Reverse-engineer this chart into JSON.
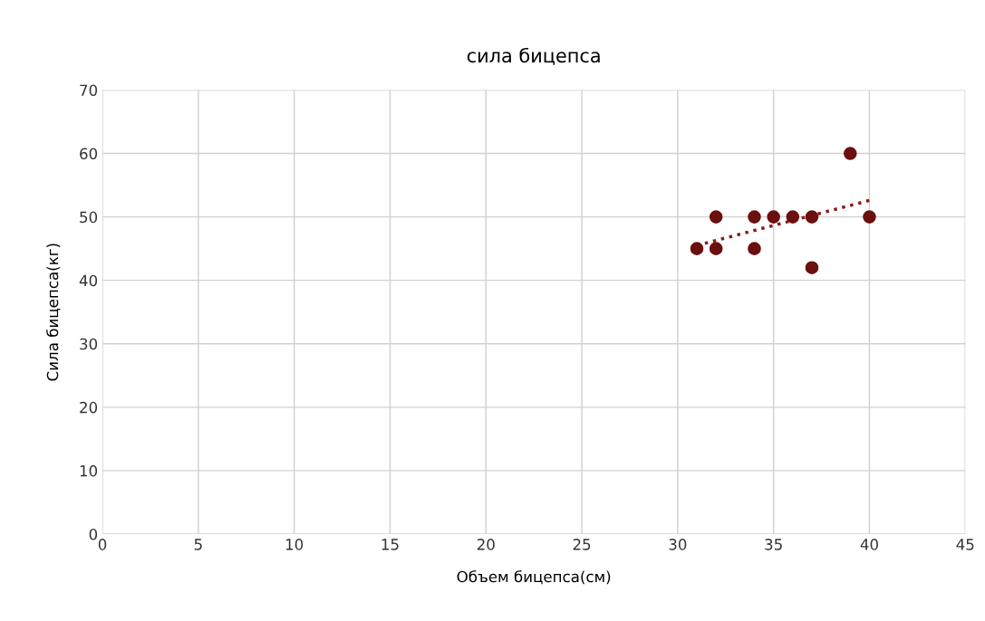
{
  "chart_data": {
    "type": "scatter",
    "title": "сила бицепса",
    "xlabel": "Объем бицепса(см)",
    "ylabel": "Сила бицепса(кг)",
    "xlim": [
      0,
      45
    ],
    "xticks": [
      0,
      5,
      10,
      15,
      20,
      25,
      30,
      35,
      40,
      45
    ],
    "ylim": [
      0,
      70
    ],
    "yticks": [
      0,
      10,
      20,
      30,
      40,
      50,
      60,
      70
    ],
    "grid": true,
    "legend": false,
    "series": [
      {
        "color": "#6b0f0f",
        "marker": "circle",
        "x": [
          31,
          32,
          32,
          34,
          34,
          35,
          36,
          37,
          37,
          39,
          40
        ],
        "values": [
          45,
          50,
          45,
          50,
          45,
          50,
          50,
          50,
          42,
          60,
          50
        ]
      },
      {
        "type": "line",
        "color": "#8b1a1a",
        "line_style": "dotted",
        "marker": "none",
        "x": [
          31,
          40
        ],
        "values": [
          45.5,
          52.6
        ]
      }
    ]
  }
}
